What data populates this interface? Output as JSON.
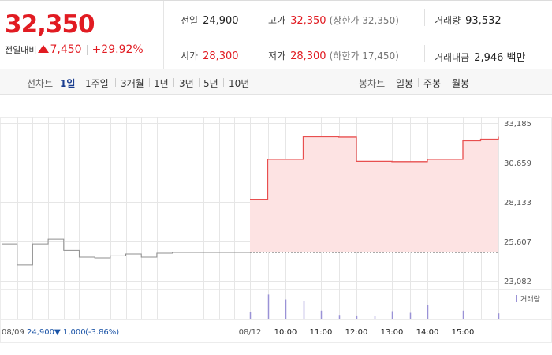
{
  "summary": {
    "price": "32,350",
    "change_label": "전일대비",
    "change_value": "7,450",
    "change_pct": "+29.92%",
    "prev_close_label": "전일",
    "prev_close": "24,900",
    "high_label": "고가",
    "high": "32,350",
    "upper_limit": "(상한가 32,350)",
    "volume_label": "거래량",
    "volume": "93,532",
    "open_label": "시가",
    "open": "28,300",
    "low_label": "저가",
    "low": "28,300",
    "lower_limit": "(하한가 17,450)",
    "amount_label": "거래대금",
    "amount": "2,946 백만"
  },
  "periodbar": {
    "line_label": "선차트",
    "line_options": [
      "1일",
      "1주일",
      "3개월",
      "1년",
      "3년",
      "5년",
      "10년"
    ],
    "candle_label": "봉차트",
    "candle_options": [
      "일봉",
      "주봉",
      "월봉"
    ]
  },
  "colors": {
    "up": "#e11b22",
    "fill": "#fde3e3",
    "grid": "#e6e6e6",
    "prev_line": "#9a9a9a",
    "volume": "#9a92d6"
  },
  "chart_data": {
    "type": "line",
    "price_axis": {
      "ylim": [
        23082,
        33185
      ],
      "ticks": [
        "33,185",
        "30,659",
        "28,133",
        "25,607",
        "23,082"
      ]
    },
    "prev_close": 24900,
    "prev_day": {
      "label": "08/09",
      "x": [
        0,
        1,
        2,
        3,
        4,
        5,
        6,
        7,
        8,
        9,
        10,
        11,
        12,
        13,
        14,
        15
      ],
      "y": [
        25450,
        24100,
        25450,
        25750,
        25030,
        24600,
        24550,
        24680,
        24800,
        24600,
        24850,
        24900,
        24900,
        24900,
        24900,
        24900
      ],
      "footer": {
        "date": "08/09",
        "close": "24,900",
        "arrow": "▼",
        "change": "1,000",
        "pct": "(-3.86%)"
      }
    },
    "intraday": {
      "label": "08/12",
      "x_ticks": [
        "08/12",
        "10:00",
        "11:00",
        "12:00",
        "13:00",
        "14:00",
        "15:00"
      ],
      "x": [
        0,
        1,
        2,
        3,
        4,
        5,
        6,
        7,
        8,
        9,
        10,
        11,
        12,
        13,
        14
      ],
      "y": [
        28300,
        30870,
        30870,
        32300,
        32300,
        32280,
        30740,
        30740,
        30720,
        30720,
        30870,
        30870,
        32050,
        32150,
        32300
      ]
    },
    "volume": {
      "label": "거래량",
      "x": [
        "08/12",
        "09:30",
        "10:00",
        "10:30",
        "11:00",
        "11:30",
        "12:00",
        "12:30",
        "13:00",
        "13:30",
        "14:00",
        "14:30",
        "15:00"
      ],
      "values": [
        25,
        90,
        72,
        66,
        30,
        14,
        12,
        10,
        28,
        22,
        52,
        30,
        20
      ]
    }
  }
}
